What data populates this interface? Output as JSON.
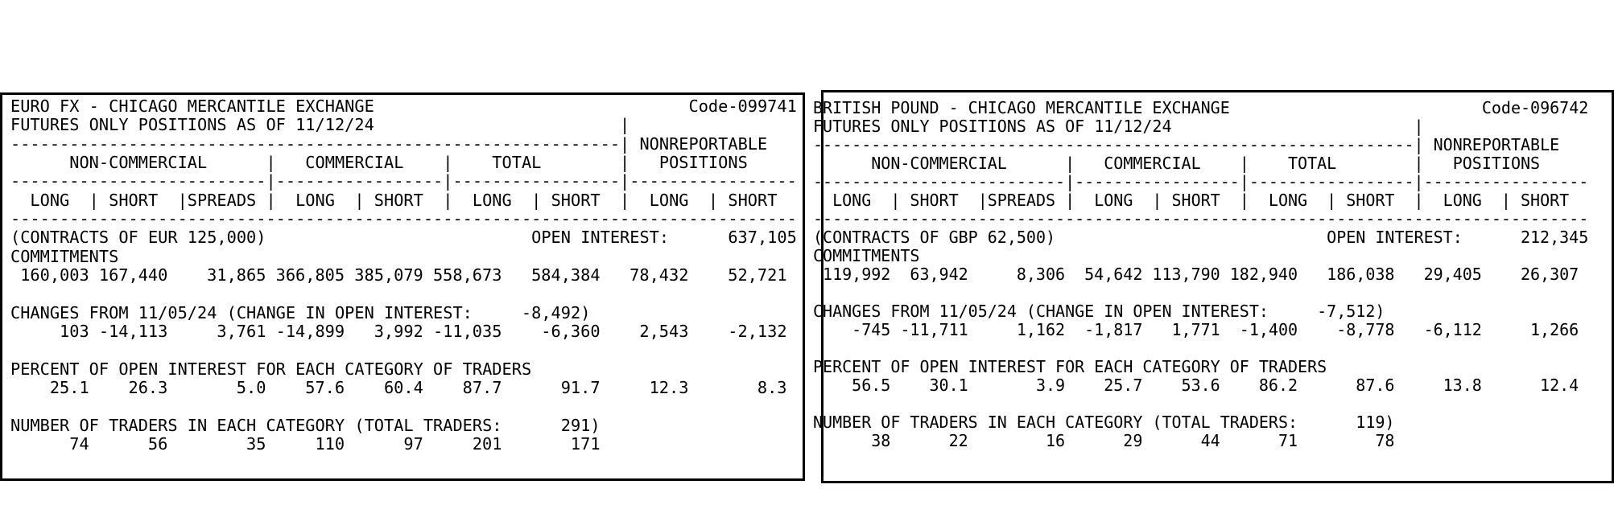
{
  "panels": [
    {
      "title": "EURO FX - CHICAGO MERCANTILE EXCHANGE",
      "code": "Code-099741",
      "header_lines": [
        "FUTURES ONLY POSITIONS AS OF 11/12/24                         |",
        "--------------------------------------------------------------| NONREPORTABLE",
        "      NON-COMMERCIAL      |   COMMERCIAL    |    TOTAL        |   POSITIONS",
        "--------------------------|-----------------|-----------------|-----------------",
        "  LONG  | SHORT  |SPREADS |  LONG  | SHORT  |  LONG  | SHORT  |  LONG  | SHORT",
        "--------------------------------------------------------------------------------"
      ],
      "contracts": "(CONTRACTS OF EUR 125,000)",
      "open_interest_label": "OPEN INTEREST:",
      "open_interest": "637,105",
      "commitments_label": "COMMITMENTS",
      "commitments": [
        "160,003",
        "167,440",
        "31,865",
        "366,805",
        "385,079",
        "558,673",
        "584,384",
        "78,432",
        "52,721"
      ],
      "changes_label": "CHANGES FROM 11/05/24 (CHANGE IN OPEN INTEREST:",
      "change_in_open_interest": "-8,492",
      "close_paren": ")",
      "changes": [
        "103",
        "-14,113",
        "3,761",
        "-14,899",
        "3,992",
        "-11,035",
        "-6,360",
        "2,543",
        "-2,132"
      ],
      "percent_label": "PERCENT OF OPEN INTEREST FOR EACH CATEGORY OF TRADERS",
      "percent": [
        "25.1",
        "26.3",
        "5.0",
        "57.6",
        "60.4",
        "87.7",
        "91.7",
        "12.3",
        "8.3"
      ],
      "traders_label": "NUMBER OF TRADERS IN EACH CATEGORY (TOTAL TRADERS:",
      "total_traders": "291",
      "traders": [
        "74",
        "56",
        "35",
        "110",
        "97",
        "201",
        "171"
      ]
    },
    {
      "title": "BRITISH POUND - CHICAGO MERCANTILE EXCHANGE",
      "code": "Code-096742",
      "header_lines": [
        "FUTURES ONLY POSITIONS AS OF 11/12/24                         |",
        "--------------------------------------------------------------| NONREPORTABLE",
        "      NON-COMMERCIAL      |   COMMERCIAL    |    TOTAL        |   POSITIONS",
        "--------------------------|-----------------|-----------------|-----------------",
        "  LONG  | SHORT  |SPREADS |  LONG  | SHORT  |  LONG  | SHORT  |  LONG  | SHORT",
        "--------------------------------------------------------------------------------"
      ],
      "contracts": "(CONTRACTS OF GBP 62,500)",
      "open_interest_label": "OPEN INTEREST:",
      "open_interest": "212,345",
      "commitments_label": "COMMITMENTS",
      "commitments": [
        "119,992",
        "63,942",
        "8,306",
        "54,642",
        "113,790",
        "182,940",
        "186,038",
        "29,405",
        "26,307"
      ],
      "changes_label": "CHANGES FROM 11/05/24 (CHANGE IN OPEN INTEREST:",
      "change_in_open_interest": "-7,512",
      "close_paren": ")",
      "changes": [
        "-745",
        "-11,711",
        "1,162",
        "-1,817",
        "1,771",
        "-1,400",
        "-8,778",
        "-6,112",
        "1,266"
      ],
      "percent_label": "PERCENT OF OPEN INTEREST FOR EACH CATEGORY OF TRADERS",
      "percent": [
        "56.5",
        "30.1",
        "3.9",
        "25.7",
        "53.6",
        "86.2",
        "87.6",
        "13.8",
        "12.4"
      ],
      "traders_label": "NUMBER OF TRADERS IN EACH CATEGORY (TOTAL TRADERS:",
      "total_traders": "119",
      "traders": [
        "38",
        "22",
        "16",
        "29",
        "44",
        "71",
        "78"
      ]
    }
  ]
}
